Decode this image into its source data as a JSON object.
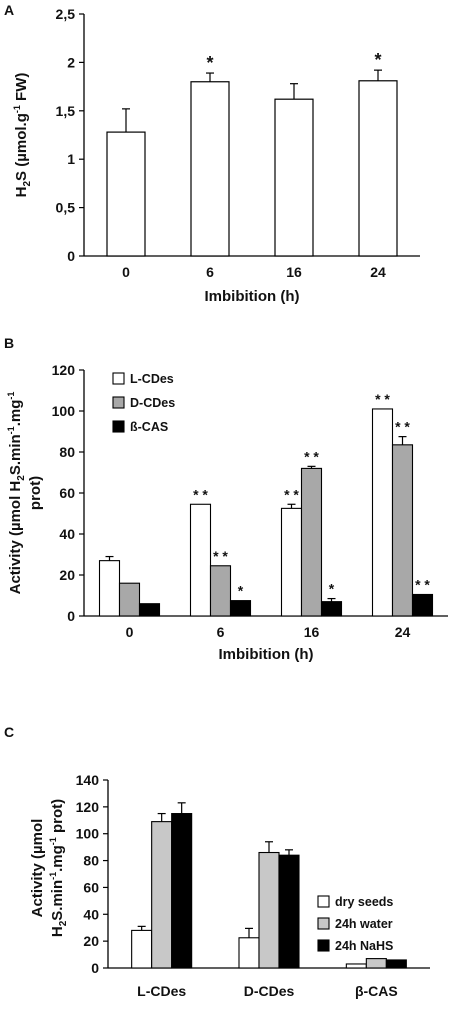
{
  "chart_data": [
    {
      "panel": "A",
      "type": "bar",
      "categories": [
        "0",
        "6",
        "16",
        "24"
      ],
      "series": [
        {
          "values": [
            1.28,
            1.8,
            1.62,
            1.81
          ],
          "errors": [
            0.24,
            0.09,
            0.16,
            0.11
          ]
        }
      ],
      "significance": [
        "",
        "*",
        "",
        "*"
      ],
      "ylim": [
        0,
        2.5
      ],
      "yticks": [
        "0",
        "0,5",
        "1",
        "1,5",
        "2",
        "2,5"
      ],
      "ylabel_parts": [
        "H",
        "2",
        "S (µmol.g",
        "-1",
        " FW)"
      ],
      "xlabel": "Imbibition (h)",
      "colors": [
        "#ffffff"
      ],
      "grid": false,
      "legend": "none"
    },
    {
      "panel": "B",
      "type": "bar",
      "categories": [
        "0",
        "6",
        "16",
        "24"
      ],
      "series": [
        {
          "name": "L-CDes",
          "values": [
            27,
            54.5,
            52.5,
            101
          ],
          "errors": [
            2,
            0,
            2,
            0
          ],
          "significance": [
            "",
            "* *",
            "* *",
            "* *"
          ]
        },
        {
          "name": "D-CDes",
          "values": [
            16,
            24.5,
            72,
            83.5
          ],
          "errors": [
            0,
            0,
            1,
            4
          ],
          "significance": [
            "",
            "* *",
            "* *",
            "* *"
          ]
        },
        {
          "name": "ß-CAS",
          "values": [
            6,
            7.5,
            7,
            10.5
          ],
          "errors": [
            0,
            0,
            1.5,
            0
          ],
          "significance": [
            "",
            "*",
            "*",
            "* *"
          ]
        }
      ],
      "ylim": [
        0,
        120
      ],
      "yticks": [
        "0",
        "20",
        "40",
        "60",
        "80",
        "100",
        "120"
      ],
      "ylabel_line1_parts": [
        "Activity (µmol H",
        "2",
        "S.min",
        "-1",
        ".mg",
        "-1"
      ],
      "ylabel_line2": "prot)",
      "xlabel": "Imbibition (h)",
      "colors": [
        "#ffffff",
        "#a8a8a8",
        "#000000"
      ],
      "grid": false,
      "legend": "top-left"
    },
    {
      "panel": "C",
      "type": "bar",
      "categories": [
        "L-CDes",
        "D-CDes",
        "β-CAS"
      ],
      "series": [
        {
          "name": "dry seeds",
          "values": [
            28,
            22.5,
            3
          ],
          "errors": [
            3,
            7,
            0
          ]
        },
        {
          "name": "24h water",
          "values": [
            109,
            86,
            7
          ],
          "errors": [
            6,
            8,
            0
          ]
        },
        {
          "name": "24h NaHS",
          "values": [
            115,
            84,
            6
          ],
          "errors": [
            8,
            4,
            0
          ]
        }
      ],
      "ylim": [
        0,
        140
      ],
      "yticks": [
        "0",
        "20",
        "40",
        "60",
        "80",
        "100",
        "120",
        "140"
      ],
      "ylabel_line1": "Activity (µmol",
      "ylabel_line2_parts": [
        "H",
        "2",
        "S.min",
        "-1",
        ".mg",
        "-1",
        " prot)"
      ],
      "colors": [
        "#ffffff",
        "#c8c8c8",
        "#000000"
      ],
      "grid": false,
      "legend": "right"
    }
  ]
}
